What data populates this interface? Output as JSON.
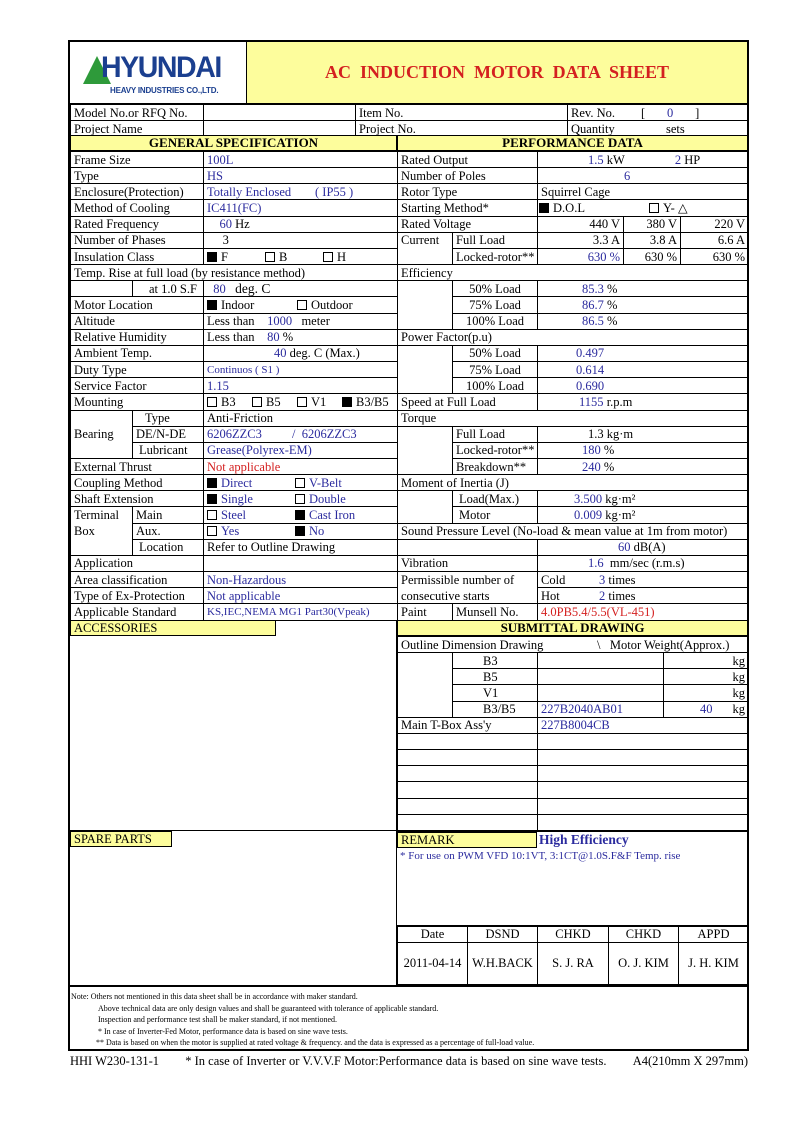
{
  "header": {
    "logo_brand": "HYUNDAI",
    "logo_sub": "HEAVY INDUSTRIES CO.,LTD.",
    "title": "AC  INDUCTION  MOTOR  DATA  SHEET",
    "colors": {
      "yellow": "#fdfd9c",
      "title_red": "#d42020",
      "value_blue": "#2b2b9e",
      "logo_green": "#2e9a3a",
      "logo_blue": "#1b3f8f"
    }
  },
  "ids": {
    "model_label": "Model No.or RFQ No.",
    "model_value": "",
    "item_label": "Item No.",
    "item_value": "",
    "rev_label": "Rev. No.",
    "rev_value": "0",
    "project_name_label": "Project Name",
    "project_name_value": "",
    "project_no_label": "Project No.",
    "project_no_value": "",
    "quantity_label": "Quantity",
    "quantity_unit": "sets"
  },
  "general": {
    "title": "GENERAL SPECIFICATION",
    "frame_size": {
      "label": "Frame Size",
      "value": "100L"
    },
    "type": {
      "label": "Type",
      "value": "HS"
    },
    "enclosure": {
      "label": "Enclosure(Protection)",
      "value": "Totally Enclosed",
      "ip": "( IP55 )"
    },
    "cooling": {
      "label": "Method of Cooling",
      "value": "IC411(FC)"
    },
    "frequency": {
      "label": "Rated Frequency",
      "value": "60",
      "unit": "Hz"
    },
    "phases": {
      "label": "Number of Phases",
      "value": "3"
    },
    "insulation": {
      "label": "Insulation Class",
      "options": [
        {
          "label": "F",
          "checked": true
        },
        {
          "label": "B",
          "checked": false
        },
        {
          "label": "H",
          "checked": false
        }
      ]
    },
    "temp_rise": {
      "label": "Temp. Rise at full load (by resistance method)",
      "sub_label": "at 1.0 S.F",
      "value": "80",
      "unit": "deg. C"
    },
    "location": {
      "label": "Motor Location",
      "options": [
        {
          "label": "Indoor",
          "checked": true
        },
        {
          "label": "Outdoor",
          "checked": false
        }
      ]
    },
    "altitude": {
      "label": "Altitude",
      "prefix": "Less than",
      "value": "1000",
      "unit": "meter"
    },
    "humidity": {
      "label": "Relative Humidity",
      "prefix": "Less than",
      "value": "80",
      "unit": "%"
    },
    "ambient": {
      "label": "Ambient Temp.",
      "value": "40",
      "unit": "deg. C (Max.)"
    },
    "duty": {
      "label": "Duty Type",
      "value": "Continuos ( S1 )"
    },
    "service_factor": {
      "label": "Service Factor",
      "value": "1.15"
    },
    "mounting": {
      "label": "Mounting",
      "options": [
        {
          "label": "B3",
          "checked": false
        },
        {
          "label": "B5",
          "checked": false
        },
        {
          "label": "V1",
          "checked": false
        },
        {
          "label": "B3/B5",
          "checked": true
        }
      ]
    },
    "bearing": {
      "label": "Bearing",
      "type_label": "Type",
      "type_value": "Anti-Friction",
      "de_label": "DE/N-DE",
      "de_value": "6206ZZC3",
      "sep": "/",
      "nde_value": "6206ZZC3",
      "lub_label": "Lubricant",
      "lub_value": "Grease(Polyrex-EM)"
    },
    "thrust": {
      "label": "External Thrust",
      "value": "Not applicable"
    },
    "coupling": {
      "label": "Coupling Method",
      "options": [
        {
          "label": "Direct",
          "checked": true
        },
        {
          "label": "V-Belt",
          "checked": false
        }
      ]
    },
    "shaft": {
      "label": "Shaft Extension",
      "options": [
        {
          "label": "Single",
          "checked": true
        },
        {
          "label": "Double",
          "checked": false
        }
      ]
    },
    "terminal": {
      "label1": "Terminal",
      "label2": "Box",
      "main_label": "Main",
      "main_options": [
        {
          "label": "Steel",
          "checked": false
        },
        {
          "label": "Cast Iron",
          "checked": true
        }
      ],
      "aux_label": "Aux.",
      "aux_options": [
        {
          "label": "Yes",
          "checked": false
        },
        {
          "label": "No",
          "checked": true
        }
      ],
      "loc_label": "Location",
      "loc_value": "Refer to Outline Drawing"
    },
    "application": {
      "label": "Application",
      "value": ""
    },
    "area": {
      "label": "Area classification",
      "value": "Non-Hazardous"
    },
    "ex": {
      "label": "Type of Ex-Protection",
      "value": "Not applicable"
    },
    "standard": {
      "label": "Applicable Standard",
      "value": "KS,IEC,NEMA MG1 Part30(Vpeak)"
    }
  },
  "performance": {
    "title": "PERFORMANCE DATA",
    "output": {
      "label": "Rated Output",
      "kw": "1.5",
      "kw_unit": "kW",
      "hp": "2",
      "hp_unit": "HP"
    },
    "poles": {
      "label": "Number of Poles",
      "value": "6"
    },
    "rotor": {
      "label": "Rotor Type",
      "value": "Squirrel Cage"
    },
    "starting": {
      "label": "Starting Method*",
      "options": [
        {
          "label": "D.O.L",
          "checked": true
        },
        {
          "label": "Y- △",
          "checked": false
        }
      ]
    },
    "voltage": {
      "label": "Rated Voltage",
      "values": [
        "440 V",
        "380 V",
        "220 V"
      ]
    },
    "current": {
      "label": "Current",
      "full_label": "Full Load",
      "full": [
        "3.3 A",
        "3.8 A",
        "6.6 A"
      ],
      "locked_label": "Locked-rotor**",
      "locked": [
        "630 %",
        "630 %",
        "630 %"
      ]
    },
    "efficiency": {
      "label": "Efficiency",
      "rows": [
        {
          "load": "50% Load",
          "value": "85.3",
          "unit": "%"
        },
        {
          "load": "75% Load",
          "value": "86.7",
          "unit": "%"
        },
        {
          "load": "100% Load",
          "value": "86.5",
          "unit": "%"
        }
      ]
    },
    "pf": {
      "label": "Power Factor(p.u)",
      "rows": [
        {
          "load": "50% Load",
          "value": "0.497"
        },
        {
          "load": "75% Load",
          "value": "0.614"
        },
        {
          "load": "100% Load",
          "value": "0.690"
        }
      ]
    },
    "speed": {
      "label": "Speed at Full Load",
      "value": "1155",
      "unit": "r.p.m"
    },
    "torque": {
      "label": "Torque",
      "full_label": "Full Load",
      "full": "1.3",
      "full_unit": "kg·m",
      "locked_label": "Locked-rotor**",
      "locked": "180",
      "locked_unit": "%",
      "breakdown_label": "Breakdown**",
      "breakdown": "240",
      "breakdown_unit": "%"
    },
    "inertia": {
      "label": "Moment of Inertia (J)",
      "load_label": "Load(Max.)",
      "load": "3.500",
      "motor_label": "Motor",
      "motor": "0.009",
      "unit": "kg·m²"
    },
    "sound": {
      "label": "Sound Pressure Level (No-load & mean value at 1m from motor)",
      "value": "60",
      "unit": "dB(A)"
    },
    "vibration": {
      "label": "Vibration",
      "value": "1.6",
      "unit": "mm/sec (r.m.s)"
    },
    "starts": {
      "label1": "Permissible number of",
      "label2": "consecutive starts",
      "cold_label": "Cold",
      "cold": "3",
      "hot_label": "Hot",
      "hot": "2",
      "unit": "times"
    },
    "paint": {
      "label": "Paint",
      "sub_label": "Munsell No.",
      "value": "4.0PB5.4/5.5(VL-451)"
    }
  },
  "accessories": {
    "title": "ACCESSORIES"
  },
  "spare_parts": {
    "title": "SPARE PARTS"
  },
  "submittal": {
    "title": "SUBMITTAL DRAWING",
    "outline_label": "Outline Dimension Drawing",
    "sep": "\\",
    "weight_label": "Motor Weight(Approx.)",
    "rows": [
      {
        "type": "B3",
        "drawing": "",
        "weight": "",
        "unit": "kg"
      },
      {
        "type": "B5",
        "drawing": "",
        "weight": "",
        "unit": "kg"
      },
      {
        "type": "V1",
        "drawing": "",
        "weight": "",
        "unit": "kg"
      },
      {
        "type": "B3/B5",
        "drawing": "227B2040AB01",
        "weight": "40",
        "unit": "kg"
      }
    ],
    "tbox_label": "Main T-Box Ass'y",
    "tbox_value": "227B8004CB"
  },
  "remark": {
    "title": "REMARK",
    "headline": "High Efficiency",
    "text": "* For use on PWM VFD 10:1VT, 3:1CT@1.0S.F&F Temp. rise"
  },
  "signoff": {
    "headers": [
      "Date",
      "DSND",
      "CHKD",
      "CHKD",
      "APPD"
    ],
    "values": [
      "2011-04-14",
      "W.H.BACK",
      "S. J. RA",
      "O. J. KIM",
      "J. H. KIM"
    ]
  },
  "notes": [
    "Note: Others not mentioned in this data sheet shall be in accordance with maker standard.",
    "Above technical data are only design values and shall be guaranteed with tolerance of applicable standard.",
    "Inspection and performance test shall be maker standard,  if not mentioned.",
    "* In case of Inverter-Fed Motor, performance data is based on sine wave tests.",
    "** Data is based on when the motor is supplied at rated voltage & frequency. and the data is expressed as a percentage of full-load value."
  ],
  "footer": {
    "doc_no": "HHI W230-131-1",
    "text": "* In case of Inverter or V.V.V.F Motor:Performance data is based on sine wave tests.",
    "paper": "A4(210mm X 297mm)"
  }
}
